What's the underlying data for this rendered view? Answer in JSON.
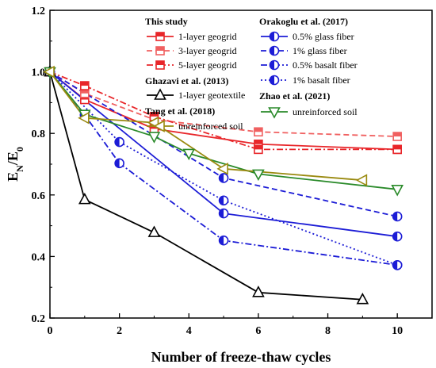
{
  "chart_data": {
    "type": "line",
    "xlabel": "Number of freeze-thaw cycles",
    "ylabel": "E",
    "ylabel_sub1": "N",
    "ylabel_mid": "/E",
    "ylabel_sub2": "0",
    "xlim": [
      0,
      11
    ],
    "ylim": [
      0.2,
      1.2
    ],
    "xticks": [
      "0",
      "2",
      "4",
      "6",
      "8",
      "10"
    ],
    "yticks": [
      "0.2",
      "0.4",
      "0.6",
      "0.8",
      "1.0",
      "1.2"
    ],
    "grid": false,
    "legend": {
      "groups": [
        {
          "title": "This study",
          "entries": [
            0,
            1,
            2
          ]
        },
        {
          "title": "Orakoglu et al. (2017)",
          "entries": [
            3,
            4,
            5,
            6
          ]
        },
        {
          "title": "Ghazavi et al. (2013)",
          "entries": [
            7
          ]
        },
        {
          "title": "Zhao et al. (2021)",
          "entries": [
            8
          ]
        },
        {
          "title": "Tang et al. (2018)",
          "entries": [
            9
          ]
        }
      ]
    },
    "series": [
      {
        "name": "1-layer geogrid",
        "color": "#e8262a",
        "dash": "solid",
        "marker": "half-square",
        "x": [
          0,
          1,
          3,
          6,
          10
        ],
        "y": [
          1.0,
          0.91,
          0.815,
          0.765,
          0.748
        ]
      },
      {
        "name": "3-layer geogrid",
        "color": "#f06060",
        "dash": "dashed",
        "marker": "half-square",
        "x": [
          0,
          1,
          3,
          6,
          10
        ],
        "y": [
          1.0,
          0.93,
          0.845,
          0.805,
          0.79
        ]
      },
      {
        "name": "5-layer geogrid",
        "color": "#e8262a",
        "dash": "dashdot",
        "marker": "half-square",
        "x": [
          0,
          1,
          3,
          6,
          10
        ],
        "y": [
          1.0,
          0.955,
          0.855,
          0.748,
          0.748
        ]
      },
      {
        "name": "0.5% glass fiber",
        "color": "#1c1cd6",
        "dash": "solid",
        "marker": "half-circle",
        "x": [
          0,
          5,
          10
        ],
        "y": [
          1.0,
          0.54,
          0.465
        ]
      },
      {
        "name": "1% glass fiber",
        "color": "#1c1cd6",
        "dash": "dashed",
        "marker": "half-circle",
        "x": [
          0,
          5,
          10
        ],
        "y": [
          1.0,
          0.655,
          0.53
        ]
      },
      {
        "name": "0.5% basalt fiber",
        "color": "#1c1cd6",
        "dash": "dashdot",
        "marker": "half-circle",
        "x": [
          0,
          1,
          2,
          5,
          10
        ],
        "y": [
          1.0,
          0.86,
          0.703,
          0.452,
          0.372
        ]
      },
      {
        "name": "1% basalt fiber",
        "color": "#1c1cd6",
        "dash": "dotted",
        "marker": "half-circle",
        "x": [
          0,
          2,
          5,
          10
        ],
        "y": [
          1.0,
          0.772,
          0.582,
          0.372
        ]
      },
      {
        "name": "1-layer geotextile",
        "color": "#000000",
        "dash": "solid",
        "marker": "triangle-up",
        "x": [
          0,
          1,
          3,
          6,
          9
        ],
        "y": [
          1.0,
          0.585,
          0.478,
          0.283,
          0.26
        ]
      },
      {
        "name": "unreinforced soil",
        "color": "#2a8a2a",
        "dash": "solid",
        "marker": "triangle-down",
        "x": [
          0,
          1,
          3,
          4,
          6,
          10
        ],
        "y": [
          1.0,
          0.862,
          0.79,
          0.735,
          0.668,
          0.618
        ]
      },
      {
        "name": "unreinforced soil",
        "color": "#9a8a10",
        "dash": "solid",
        "marker": "triangle-left",
        "x": [
          0,
          1,
          3,
          5,
          9
        ],
        "y": [
          1.0,
          0.85,
          0.835,
          0.685,
          0.648
        ]
      }
    ]
  }
}
